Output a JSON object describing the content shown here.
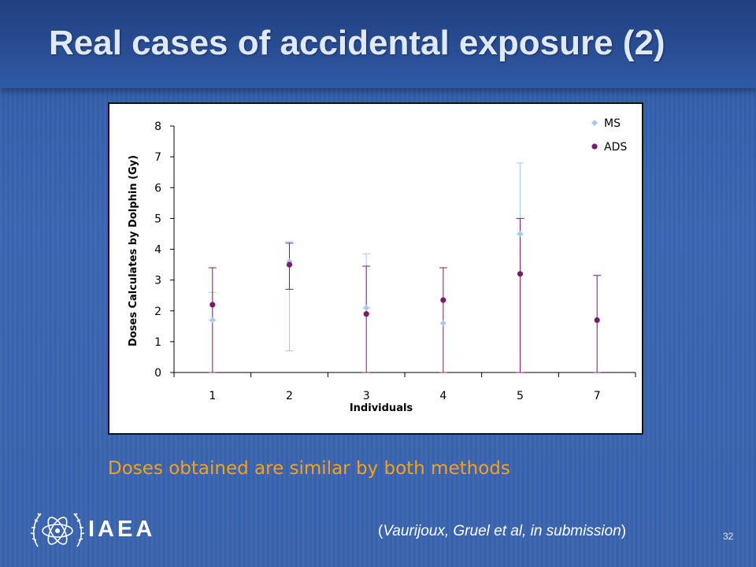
{
  "slide": {
    "title": "Real cases of accidental exposure (2)",
    "caption": "Doses obtained are similar by both methods",
    "citation_open": "(",
    "citation_text": "Vaurijoux, Gruel et al, in submission",
    "citation_close": ")",
    "page_number": "32",
    "logo_text": "IAEA",
    "logo_icon": "iaea-atom-olive-wreath-icon",
    "colors": {
      "title": "#dfe9fb",
      "caption": "#f7a11a",
      "background": "#3a64ae"
    }
  },
  "chart_data": {
    "type": "scatter",
    "title": "",
    "xlabel": "Individuals",
    "ylabel": "Doses Calculates by Dolphin (Gy)",
    "categories": [
      "1",
      "2",
      "3",
      "4",
      "5",
      "7"
    ],
    "ylim": [
      0,
      8
    ],
    "yticks": [
      "0",
      "1",
      "2",
      "3",
      "4",
      "5",
      "6",
      "7",
      "8"
    ],
    "grid": false,
    "legend_position": "top-right",
    "series": [
      {
        "name": "MS",
        "color": "#a9c8ef",
        "marker": "diamond",
        "values": [
          1.7,
          3.6,
          2.1,
          1.6,
          4.5,
          null
        ],
        "err_low": [
          1.7,
          0.7,
          2.1,
          null,
          4.5,
          null
        ],
        "err_high": [
          2.6,
          4.25,
          3.85,
          null,
          6.8,
          null
        ]
      },
      {
        "name": "ADS",
        "color": "#7a1a6e",
        "marker": "circle",
        "values": [
          2.2,
          3.5,
          1.9,
          2.35,
          3.2,
          1.7
        ],
        "err_low": [
          0,
          2.7,
          0,
          0,
          0,
          0
        ],
        "err_high": [
          3.4,
          4.2,
          3.45,
          3.4,
          5.0,
          3.15
        ]
      }
    ]
  }
}
